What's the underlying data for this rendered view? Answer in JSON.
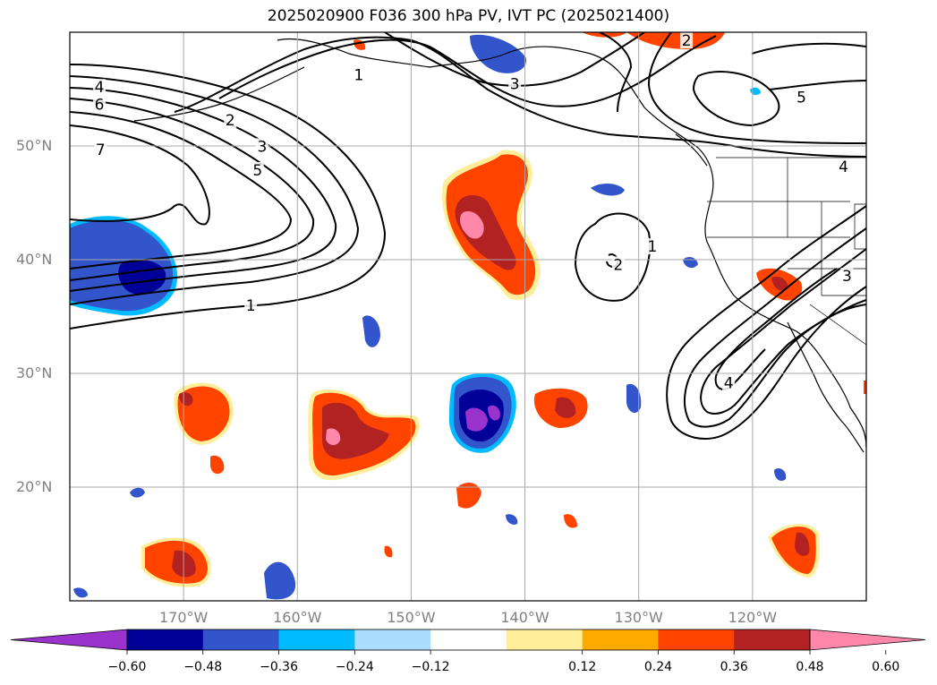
{
  "title": "2025020900 F036 300 hPa PV, IVT PC (2025021400)",
  "map": {
    "lon_range": [
      -180,
      -110
    ],
    "lat_range": [
      10,
      60
    ],
    "lat_ticks": [
      {
        "value": 50,
        "label": "50°N"
      },
      {
        "value": 40,
        "label": "40°N"
      },
      {
        "value": 30,
        "label": "30°N"
      },
      {
        "value": 20,
        "label": "20°N"
      }
    ],
    "lon_ticks": [
      {
        "value": -170,
        "label": "170°W"
      },
      {
        "value": -160,
        "label": "160°W"
      },
      {
        "value": -150,
        "label": "150°W"
      },
      {
        "value": -140,
        "label": "140°W"
      },
      {
        "value": -130,
        "label": "130°W"
      },
      {
        "value": -120,
        "label": "120°W"
      }
    ],
    "grid": true,
    "contour_labels": [
      {
        "text": "4",
        "lon": -177.4,
        "lat": 55.1
      },
      {
        "text": "6",
        "lon": -177.4,
        "lat": 53.6
      },
      {
        "text": "7",
        "lon": -177.3,
        "lat": 49.6
      },
      {
        "text": "2",
        "lon": -165.9,
        "lat": 52.2
      },
      {
        "text": "3",
        "lon": -163.1,
        "lat": 49.9
      },
      {
        "text": "5",
        "lon": -163.5,
        "lat": 47.8
      },
      {
        "text": "1",
        "lon": -154.6,
        "lat": 56.2
      },
      {
        "text": "3",
        "lon": -140.9,
        "lat": 55.4
      },
      {
        "text": "1",
        "lon": -164.1,
        "lat": 35.9
      },
      {
        "text": "2",
        "lon": -131.8,
        "lat": 39.5
      },
      {
        "text": "1",
        "lon": -128.8,
        "lat": 41.1
      },
      {
        "text": "2",
        "lon": -125.8,
        "lat": 59.2
      },
      {
        "text": "5",
        "lon": -115.7,
        "lat": 54.2
      },
      {
        "text": "4",
        "lon": -112.0,
        "lat": 48.1
      },
      {
        "text": "3",
        "lon": -111.7,
        "lat": 38.5
      },
      {
        "text": "4",
        "lon": -122.1,
        "lat": 29.1
      }
    ],
    "colors": {
      "ocean": "#ffffff",
      "grid": "#a8a8a8",
      "contour": "#000000"
    }
  },
  "colorbar": {
    "colors": [
      "#9933cc",
      "#000099",
      "#3355cc",
      "#00bbff",
      "#aaddff",
      "#ffffff",
      "#ffee99",
      "#ffaa00",
      "#ff4400",
      "#b22222",
      "#ff88aa"
    ],
    "ticks": [
      "−0.60",
      "−0.48",
      "−0.36",
      "−0.24",
      "−0.12",
      "0.12",
      "0.24",
      "0.36",
      "0.48",
      "0.60"
    ]
  }
}
